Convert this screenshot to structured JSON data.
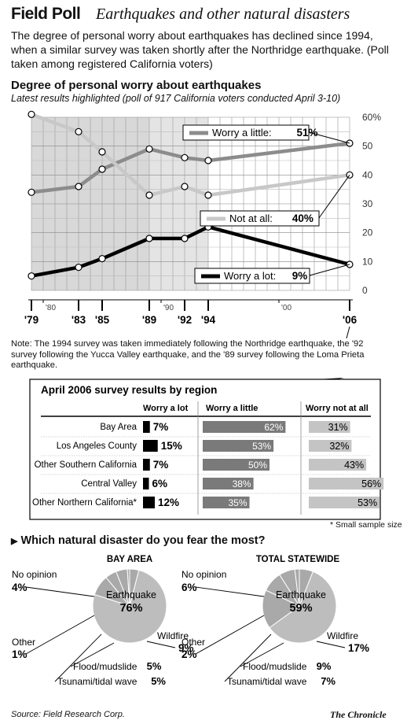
{
  "header": {
    "brand": "Field Poll",
    "subtitle": "Earthquakes and other natural disasters",
    "intro": "The degree of personal worry about earthquakes has declined since 1994, when a similar survey was taken shortly after the Northridge earthquake. (Poll taken among registered California voters)"
  },
  "chart_data": [
    {
      "type": "line",
      "title": "Degree of personal worry about earthquakes",
      "subtitle": "Latest results highlighted (poll of 917 California voters conducted April 3-10)",
      "x": [
        1979,
        1983,
        1985,
        1989,
        1992,
        1994,
        2006
      ],
      "x_tick_labels": [
        "'79",
        "'83",
        "'85",
        "'89",
        "'92",
        "'94",
        "'06"
      ],
      "x_minor_labels": [
        "'80",
        "'90",
        "'00"
      ],
      "y_ticks": [
        0,
        10,
        20,
        30,
        40,
        50,
        "60%"
      ],
      "ylim": [
        0,
        60
      ],
      "grid": true,
      "series": [
        {
          "name": "Worry a little",
          "values": [
            34,
            36,
            42,
            49,
            46,
            45,
            51
          ],
          "label": "Worry a little:",
          "latest": "51%",
          "color": "#8c8c8c"
        },
        {
          "name": "Not at all",
          "values": [
            61,
            55,
            48,
            33,
            36,
            33,
            40
          ],
          "label": "Not at all:",
          "latest": "40%",
          "color": "#c8c8c8"
        },
        {
          "name": "Worry a lot",
          "values": [
            5,
            8,
            11,
            18,
            18,
            22,
            9
          ],
          "label": "Worry a lot:",
          "latest": "9%",
          "color": "#000000"
        }
      ]
    },
    {
      "type": "bar",
      "title": "April 2006 survey results by region",
      "columns": [
        "Worry a lot",
        "Worry a little",
        "Worry not at all"
      ],
      "rows": [
        {
          "region": "Bay Area",
          "lot": 7,
          "little": 62,
          "notatall": 31
        },
        {
          "region": "Los Angeles County",
          "lot": 15,
          "little": 53,
          "notatall": 32
        },
        {
          "region": "Other Southern California",
          "lot": 7,
          "little": 50,
          "notatall": 43
        },
        {
          "region": "Central Valley",
          "lot": 6,
          "little": 38,
          "notatall": 56
        },
        {
          "region": "Other Northern California*",
          "lot": 12,
          "little": 35,
          "notatall": 53
        }
      ],
      "footnote": "* Small sample size"
    },
    {
      "type": "pie",
      "title": "BAY AREA",
      "slices": [
        {
          "label": "Earthquake",
          "value": 76
        },
        {
          "label": "Wildfire",
          "value": 9
        },
        {
          "label": "Flood/mudslide",
          "value": 5
        },
        {
          "label": "Tsunami/tidal wave",
          "value": 5
        },
        {
          "label": "Other",
          "value": 1
        },
        {
          "label": "No opinion",
          "value": 4
        }
      ]
    },
    {
      "type": "pie",
      "title": "TOTAL STATEWIDE",
      "slices": [
        {
          "label": "Earthquake",
          "value": 59
        },
        {
          "label": "Wildfire",
          "value": 17
        },
        {
          "label": "Flood/mudslide",
          "value": 9
        },
        {
          "label": "Tsunami/tidal wave",
          "value": 7
        },
        {
          "label": "Other",
          "value": 2
        },
        {
          "label": "No opinion",
          "value": 6
        }
      ]
    }
  ],
  "note": "Note: The 1994 survey was taken immediately following the Northridge earthquake, the '92 survey following the Yucca Valley earthquake, and the '89 survey following the Loma Prieta earthquake.",
  "question": "Which natural disaster do you fear the most?",
  "source": "Source: Field Research Corp.",
  "publisher": "The Chronicle"
}
